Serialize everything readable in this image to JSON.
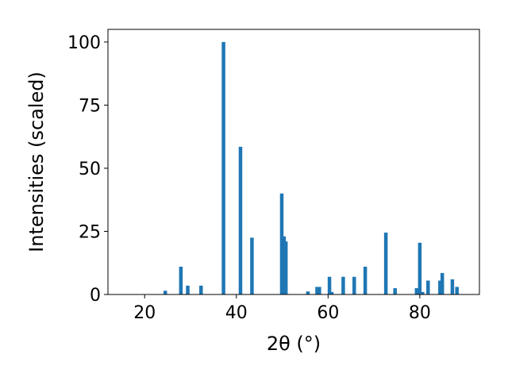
{
  "chart_data": {
    "type": "bar",
    "xlabel": "2θ (°)",
    "ylabel": "Intensities (scaled)",
    "xlim": [
      12,
      93
    ],
    "ylim": [
      0,
      105
    ],
    "x_ticks": [
      20,
      40,
      60,
      80
    ],
    "y_ticks": [
      0,
      25,
      50,
      75,
      100
    ],
    "bar_color": "#1f77b4",
    "grid": false,
    "bars": [
      {
        "x": 24.5,
        "y": 1.5
      },
      {
        "x": 27.9,
        "y": 11
      },
      {
        "x": 29.4,
        "y": 3.5
      },
      {
        "x": 32.3,
        "y": 3.5
      },
      {
        "x": 37.2,
        "y": 100
      },
      {
        "x": 40.9,
        "y": 58.5
      },
      {
        "x": 43.4,
        "y": 22.5
      },
      {
        "x": 49.9,
        "y": 40
      },
      {
        "x": 50.4,
        "y": 23
      },
      {
        "x": 50.8,
        "y": 21
      },
      {
        "x": 55.6,
        "y": 1.2
      },
      {
        "x": 57.6,
        "y": 3
      },
      {
        "x": 58.1,
        "y": 3
      },
      {
        "x": 60.3,
        "y": 7
      },
      {
        "x": 60.8,
        "y": 1
      },
      {
        "x": 63.3,
        "y": 7
      },
      {
        "x": 65.7,
        "y": 7
      },
      {
        "x": 68.1,
        "y": 11
      },
      {
        "x": 72.6,
        "y": 24.5
      },
      {
        "x": 74.6,
        "y": 2.5
      },
      {
        "x": 79.3,
        "y": 2.5
      },
      {
        "x": 80.0,
        "y": 20.5
      },
      {
        "x": 80.6,
        "y": 1
      },
      {
        "x": 81.8,
        "y": 5.5
      },
      {
        "x": 84.4,
        "y": 5.5
      },
      {
        "x": 84.9,
        "y": 8.5
      },
      {
        "x": 87.1,
        "y": 6
      },
      {
        "x": 88.1,
        "y": 3
      }
    ]
  }
}
